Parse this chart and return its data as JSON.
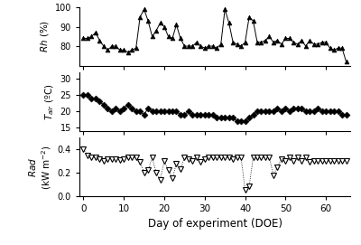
{
  "rh_x": [
    0,
    1,
    2,
    3,
    4,
    5,
    6,
    7,
    8,
    9,
    10,
    11,
    12,
    13,
    14,
    15,
    16,
    17,
    18,
    19,
    20,
    21,
    22,
    23,
    24,
    25,
    26,
    27,
    28,
    29,
    30,
    31,
    32,
    33,
    34,
    35,
    36,
    37,
    38,
    39,
    40,
    41,
    42,
    43,
    44,
    45,
    46,
    47,
    48,
    49,
    50,
    51,
    52,
    53,
    54,
    55,
    56,
    57,
    58,
    59,
    60,
    61,
    62,
    63,
    64,
    65
  ],
  "rh_y": [
    84,
    84,
    85,
    87,
    83,
    80,
    78,
    80,
    80,
    78,
    78,
    77,
    78,
    79,
    95,
    99,
    93,
    85,
    88,
    92,
    90,
    85,
    84,
    91,
    84,
    80,
    80,
    80,
    82,
    80,
    79,
    80,
    80,
    79,
    81,
    99,
    92,
    82,
    81,
    80,
    82,
    95,
    93,
    82,
    82,
    83,
    85,
    82,
    83,
    81,
    84,
    84,
    82,
    81,
    83,
    80,
    83,
    81,
    81,
    82,
    82,
    79,
    78,
    79,
    79,
    72
  ],
  "tair_x": [
    0,
    1,
    2,
    3,
    4,
    5,
    6,
    7,
    8,
    9,
    10,
    11,
    12,
    13,
    14,
    15,
    16,
    17,
    18,
    19,
    20,
    21,
    22,
    23,
    24,
    25,
    26,
    27,
    28,
    29,
    30,
    31,
    32,
    33,
    34,
    35,
    36,
    37,
    38,
    39,
    40,
    41,
    42,
    43,
    44,
    45,
    46,
    47,
    48,
    49,
    50,
    51,
    52,
    53,
    54,
    55,
    56,
    57,
    58,
    59,
    60,
    61,
    62,
    63,
    64,
    65
  ],
  "tair_y": [
    25,
    25,
    24,
    24,
    23,
    22,
    21,
    20,
    21,
    20,
    21,
    22,
    21,
    20,
    20,
    19,
    21,
    20,
    20,
    20,
    20,
    20,
    20,
    20,
    19,
    19,
    20,
    19,
    19,
    19,
    19,
    19,
    19,
    18,
    18,
    18,
    18,
    18,
    17,
    17,
    17,
    18,
    19,
    20,
    20,
    20,
    20,
    20,
    21,
    20,
    21,
    20,
    21,
    21,
    21,
    20,
    20,
    20,
    21,
    20,
    20,
    20,
    20,
    20,
    19,
    19
  ],
  "rad_x": [
    0,
    1,
    2,
    3,
    4,
    5,
    6,
    7,
    8,
    9,
    10,
    11,
    12,
    13,
    14,
    15,
    16,
    17,
    18,
    19,
    20,
    21,
    22,
    23,
    24,
    25,
    26,
    27,
    28,
    29,
    30,
    31,
    32,
    33,
    34,
    35,
    36,
    37,
    38,
    39,
    40,
    41,
    42,
    43,
    44,
    45,
    46,
    47,
    48,
    49,
    50,
    51,
    52,
    53,
    54,
    55,
    56,
    57,
    58,
    59,
    60,
    61,
    62,
    63,
    64,
    65
  ],
  "rad_y": [
    0.4,
    0.35,
    0.33,
    0.33,
    0.32,
    0.3,
    0.32,
    0.32,
    0.32,
    0.31,
    0.32,
    0.33,
    0.33,
    0.33,
    0.29,
    0.2,
    0.22,
    0.33,
    0.2,
    0.14,
    0.3,
    0.22,
    0.15,
    0.28,
    0.23,
    0.33,
    0.32,
    0.3,
    0.33,
    0.29,
    0.32,
    0.33,
    0.33,
    0.33,
    0.33,
    0.33,
    0.33,
    0.32,
    0.33,
    0.33,
    0.05,
    0.08,
    0.33,
    0.33,
    0.33,
    0.33,
    0.33,
    0.18,
    0.25,
    0.32,
    0.3,
    0.33,
    0.3,
    0.33,
    0.3,
    0.33,
    0.29,
    0.3,
    0.3,
    0.3,
    0.3,
    0.3,
    0.3,
    0.3,
    0.3,
    0.3
  ],
  "rh_ylim": [
    70,
    100
  ],
  "rh_yticks": [
    80,
    90,
    100
  ],
  "tair_ylim": [
    14,
    32
  ],
  "tair_yticks": [
    15,
    20,
    25,
    30
  ],
  "rad_ylim": [
    0.0,
    0.5
  ],
  "rad_yticks": [
    0.0,
    0.2,
    0.4
  ],
  "xlim": [
    -1,
    66
  ],
  "xticks": [
    0,
    10,
    20,
    30,
    40,
    50,
    60
  ],
  "xlabel": "Day of experiment (DOE)",
  "line_color": "black",
  "marker_color": "black",
  "background_color": "#ffffff"
}
